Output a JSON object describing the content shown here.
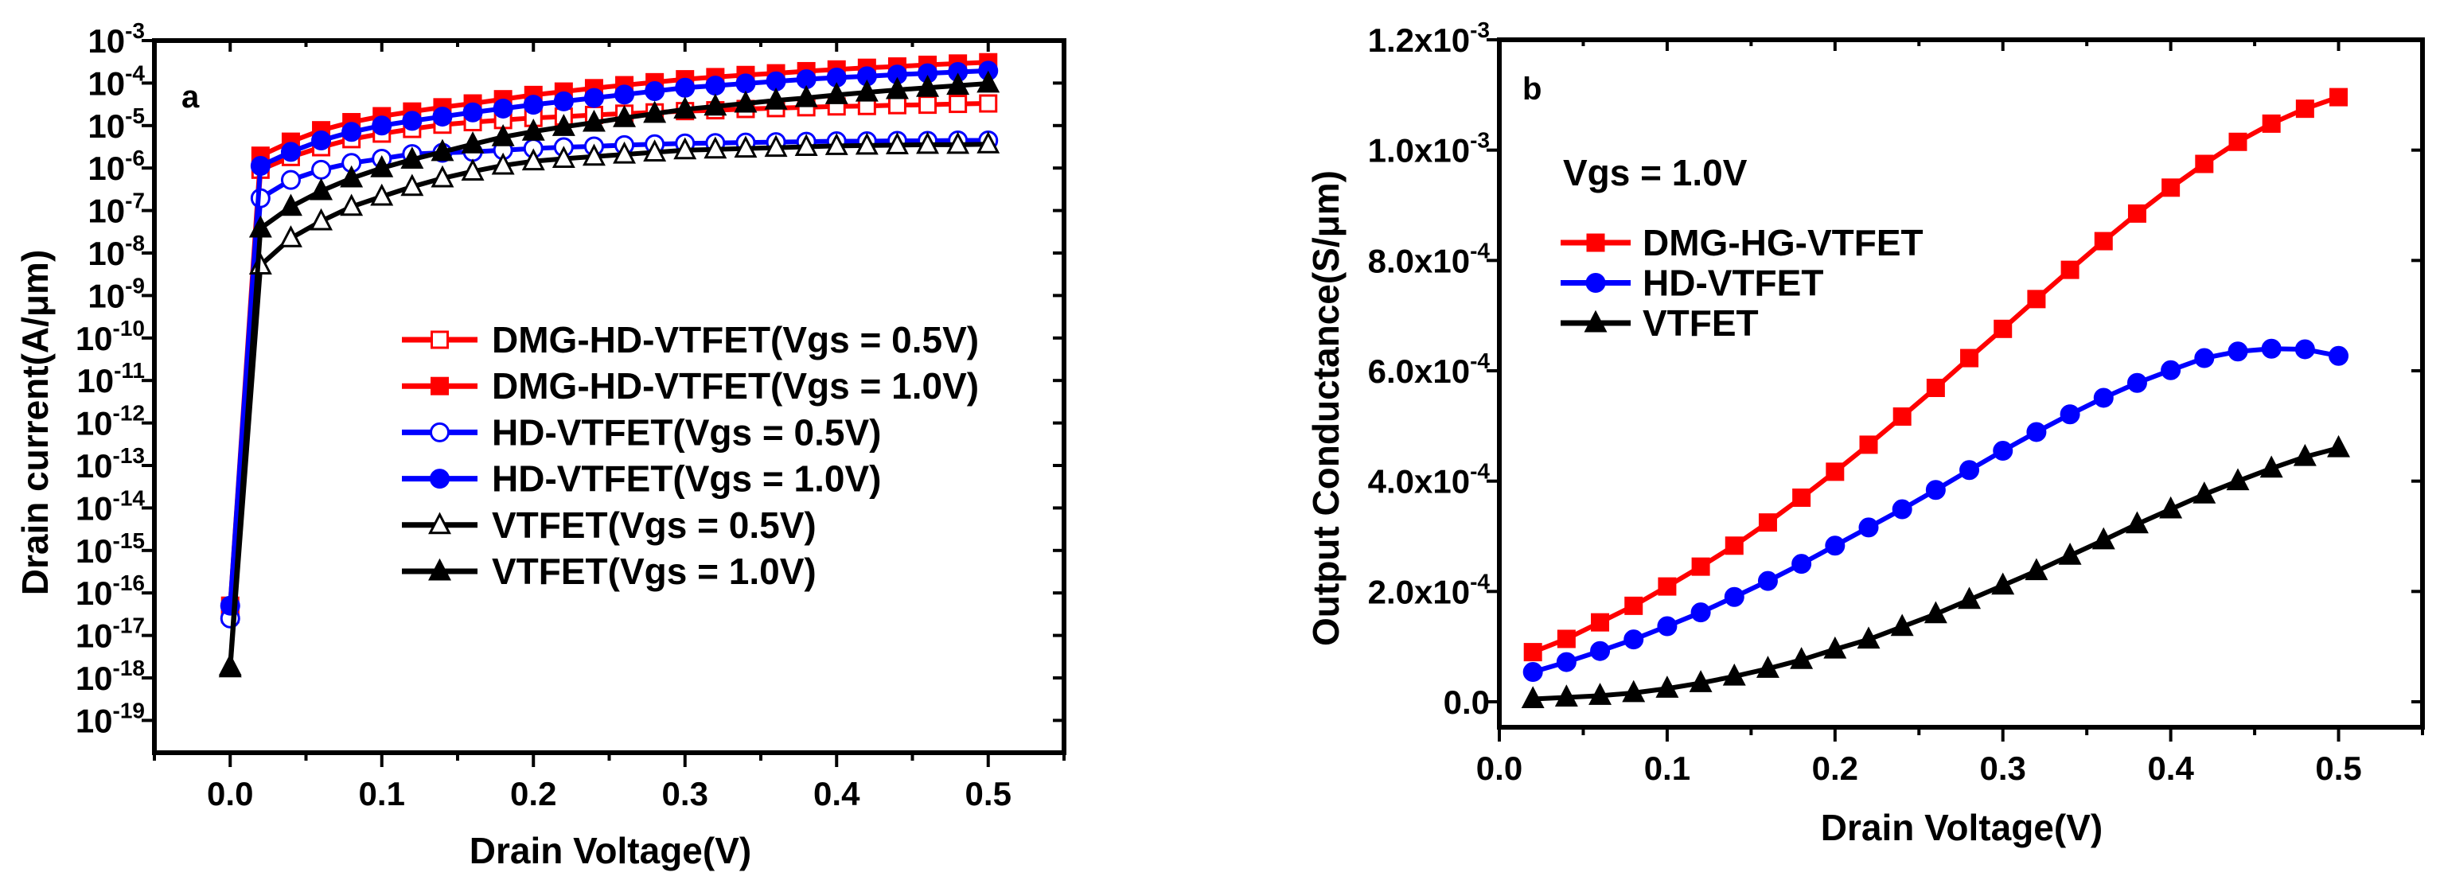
{
  "chart_data": [
    {
      "type": "line",
      "panel_label": "a",
      "title": "",
      "xlabel": "Drain Voltage(V)",
      "ylabel": "Drain current(A/μm)",
      "yscale": "log",
      "xlim": [
        -0.05,
        0.55
      ],
      "ylim_log10": [
        -19.8,
        -3
      ],
      "xticks": [
        "0.0",
        "0.1",
        "0.2",
        "0.3",
        "0.4",
        "0.5"
      ],
      "xtick_values": [
        0,
        0.1,
        0.2,
        0.3,
        0.4,
        0.5
      ],
      "yticks": [
        {
          "base": "10",
          "exp": "-3",
          "v": -3
        },
        {
          "base": "10",
          "exp": "-4",
          "v": -4
        },
        {
          "base": "10",
          "exp": "-5",
          "v": -5
        },
        {
          "base": "10",
          "exp": "-6",
          "v": -6
        },
        {
          "base": "10",
          "exp": "-7",
          "v": -7
        },
        {
          "base": "10",
          "exp": "-8",
          "v": -8
        },
        {
          "base": "10",
          "exp": "-9",
          "v": -9
        },
        {
          "base": "10",
          "exp": "-10",
          "v": -10
        },
        {
          "base": "10",
          "exp": "-11",
          "v": -11
        },
        {
          "base": "10",
          "exp": "-12",
          "v": -12
        },
        {
          "base": "10",
          "exp": "-13",
          "v": -13
        },
        {
          "base": "10",
          "exp": "-14",
          "v": -14
        },
        {
          "base": "10",
          "exp": "-15",
          "v": -15
        },
        {
          "base": "10",
          "exp": "-16",
          "v": -16
        },
        {
          "base": "10",
          "exp": "-17",
          "v": -17
        },
        {
          "base": "10",
          "exp": "-18",
          "v": -18
        },
        {
          "base": "10",
          "exp": "-19",
          "v": -19
        }
      ],
      "legend_position": "center-right",
      "x": [
        0,
        0.02,
        0.04,
        0.06,
        0.08,
        0.1,
        0.12,
        0.14,
        0.16,
        0.18,
        0.2,
        0.22,
        0.24,
        0.26,
        0.28,
        0.3,
        0.32,
        0.34,
        0.36,
        0.38,
        0.4,
        0.42,
        0.44,
        0.46,
        0.48,
        0.5
      ],
      "series": [
        {
          "name": "DMG-HD-VTFET(Vgs = 0.5V)",
          "color": "#ff0000",
          "marker": "square-open",
          "y_log10": [
            -16.5,
            -6.04,
            -5.74,
            -5.51,
            -5.32,
            -5.19,
            -5.08,
            -4.98,
            -4.92,
            -4.87,
            -4.82,
            -4.79,
            -4.75,
            -4.72,
            -4.69,
            -4.66,
            -4.64,
            -4.61,
            -4.59,
            -4.57,
            -4.55,
            -4.54,
            -4.52,
            -4.51,
            -4.49,
            -4.48
          ]
        },
        {
          "name": "DMG-HD-VTFET(Vgs = 1.0V)",
          "color": "#ff0000",
          "marker": "square-filled",
          "y_log10": [
            -16.3,
            -5.71,
            -5.38,
            -5.11,
            -4.92,
            -4.78,
            -4.67,
            -4.57,
            -4.48,
            -4.38,
            -4.28,
            -4.2,
            -4.12,
            -4.05,
            -3.98,
            -3.91,
            -3.86,
            -3.81,
            -3.77,
            -3.72,
            -3.68,
            -3.64,
            -3.61,
            -3.57,
            -3.54,
            -3.51
          ]
        },
        {
          "name": "HD-VTFET(Vgs = 0.5V)",
          "color": "#0000ff",
          "marker": "circle-open",
          "y_log10": [
            -16.6,
            -6.71,
            -6.28,
            -6.04,
            -5.88,
            -5.78,
            -5.67,
            -5.64,
            -5.62,
            -5.58,
            -5.54,
            -5.51,
            -5.49,
            -5.46,
            -5.44,
            -5.42,
            -5.41,
            -5.4,
            -5.39,
            -5.38,
            -5.37,
            -5.37,
            -5.36,
            -5.36,
            -5.35,
            -5.35
          ]
        },
        {
          "name": "HD-VTFET(Vgs = 1.0V)",
          "color": "#0000ff",
          "marker": "circle-filled",
          "y_log10": [
            -16.3,
            -5.95,
            -5.62,
            -5.35,
            -5.15,
            -5.0,
            -4.89,
            -4.79,
            -4.69,
            -4.6,
            -4.51,
            -4.43,
            -4.35,
            -4.27,
            -4.19,
            -4.11,
            -4.06,
            -4.01,
            -3.96,
            -3.91,
            -3.87,
            -3.84,
            -3.8,
            -3.77,
            -3.74,
            -3.71
          ]
        },
        {
          "name": "VTFET(Vgs = 0.5V)",
          "color": "#000000",
          "marker": "triangle-open",
          "y_log10": [
            -17.77,
            -8.29,
            -7.65,
            -7.25,
            -6.91,
            -6.67,
            -6.44,
            -6.24,
            -6.08,
            -5.94,
            -5.84,
            -5.78,
            -5.73,
            -5.68,
            -5.63,
            -5.58,
            -5.56,
            -5.54,
            -5.52,
            -5.5,
            -5.48,
            -5.47,
            -5.46,
            -5.45,
            -5.45,
            -5.44
          ]
        },
        {
          "name": "VTFET(Vgs = 1.0V)",
          "color": "#000000",
          "marker": "triangle-filled",
          "y_log10": [
            -17.73,
            -7.42,
            -6.91,
            -6.54,
            -6.24,
            -6.0,
            -5.8,
            -5.62,
            -5.44,
            -5.27,
            -5.14,
            -5.03,
            -4.93,
            -4.82,
            -4.72,
            -4.62,
            -4.55,
            -4.48,
            -4.41,
            -4.35,
            -4.28,
            -4.22,
            -4.16,
            -4.11,
            -4.06,
            -4.01
          ]
        }
      ]
    },
    {
      "type": "line",
      "panel_label": "b",
      "title": "",
      "annotation": "Vgs = 1.0V",
      "xlabel": "Drain Voltage(V)",
      "ylabel": "Output Conductance(S/μm)",
      "xlim": [
        0,
        0.55
      ],
      "ylim": [
        -5e-05,
        0.0012
      ],
      "xticks": [
        "0.0",
        "0.1",
        "0.2",
        "0.3",
        "0.4",
        "0.5"
      ],
      "xtick_values": [
        0,
        0.1,
        0.2,
        0.3,
        0.4,
        0.5
      ],
      "yticks": [
        {
          "base": "0.0",
          "exp": "",
          "v": 0
        },
        {
          "base": "2.0x10",
          "exp": "-4",
          "v": 0.0002
        },
        {
          "base": "4.0x10",
          "exp": "-4",
          "v": 0.0004
        },
        {
          "base": "6.0x10",
          "exp": "-4",
          "v": 0.0006
        },
        {
          "base": "8.0x10",
          "exp": "-4",
          "v": 0.0008
        },
        {
          "base": "1.0x10",
          "exp": "-3",
          "v": 0.001
        },
        {
          "base": "1.2x10",
          "exp": "-3",
          "v": 0.0012
        }
      ],
      "legend_position": "top-left",
      "x": [
        0.02,
        0.04,
        0.06,
        0.08,
        0.1,
        0.12,
        0.14,
        0.16,
        0.18,
        0.2,
        0.22,
        0.24,
        0.26,
        0.28,
        0.3,
        0.32,
        0.34,
        0.36,
        0.38,
        0.4,
        0.42,
        0.44,
        0.46,
        0.48,
        0.5
      ],
      "series": [
        {
          "name": "DMG-HG-VTFET",
          "color": "#ff0000",
          "marker": "square-filled",
          "y": [
            9e-05,
            0.000114,
            0.000144,
            0.000174,
            0.000209,
            0.000245,
            0.000283,
            0.000325,
            0.00037,
            0.000417,
            0.000466,
            0.000517,
            0.000569,
            0.000623,
            0.000676,
            0.00073,
            0.000783,
            0.000835,
            0.000885,
            0.000932,
            0.000975,
            0.001015,
            0.001048,
            0.001075,
            0.001096
          ]
        },
        {
          "name": "HD-VTFET",
          "color": "#0000ff",
          "marker": "circle-filled",
          "y": [
            5.4e-05,
            7.2e-05,
            9.2e-05,
            0.000113,
            0.000137,
            0.000162,
            0.00019,
            0.000219,
            0.00025,
            0.000283,
            0.000316,
            0.000349,
            0.000384,
            0.00042,
            0.000455,
            0.000489,
            0.000521,
            0.000551,
            0.000578,
            0.000601,
            0.000623,
            0.000635,
            0.00064,
            0.000639,
            0.000627
          ]
        },
        {
          "name": "VTFET",
          "color": "#000000",
          "marker": "triangle-filled",
          "y": [
            5e-06,
            8e-06,
            1.1e-05,
            1.6e-05,
            2.4e-05,
            3.4e-05,
            4.6e-05,
            6e-05,
            7.6e-05,
            9.5e-05,
            0.000113,
            0.000136,
            0.000159,
            0.000185,
            0.000211,
            0.000237,
            0.000265,
            0.000293,
            0.000322,
            0.000349,
            0.000376,
            0.0004,
            0.000423,
            0.000444,
            0.00046
          ]
        }
      ]
    }
  ]
}
